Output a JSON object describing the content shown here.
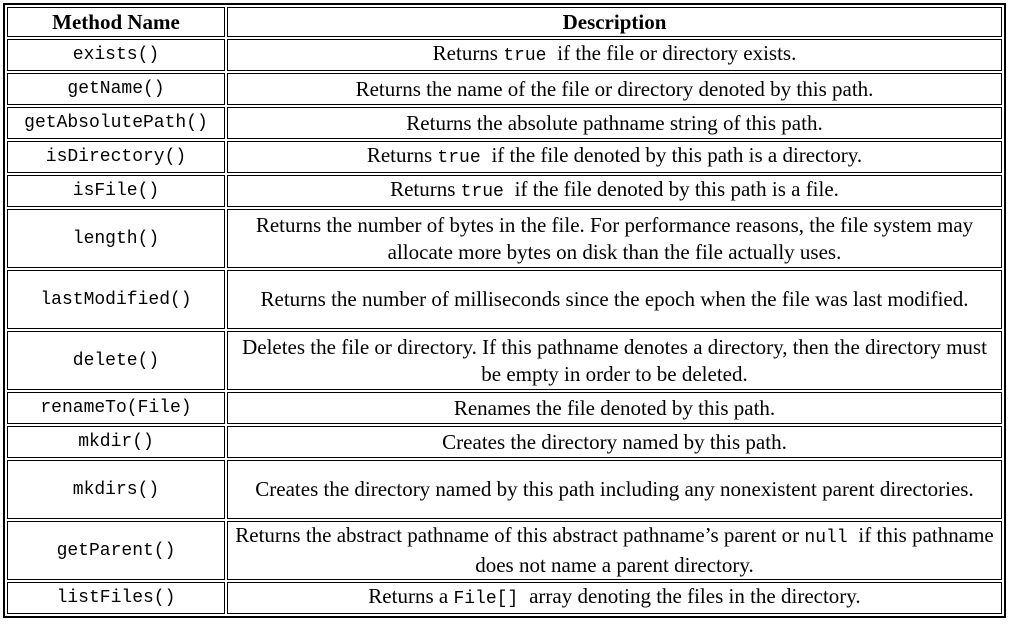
{
  "header": {
    "method_name": "Method Name",
    "description": "Description"
  },
  "rows": [
    {
      "method": "exists()",
      "desc": [
        {
          "t": "Returns "
        },
        {
          "c": "true "
        },
        {
          "t": " if the file or directory exists."
        }
      ]
    },
    {
      "method": "getName()",
      "desc": [
        {
          "t": "Returns the name of the file or directory denoted by this path."
        }
      ]
    },
    {
      "method": "getAbsolutePath()",
      "desc": [
        {
          "t": "Returns the absolute pathname string of this path."
        }
      ]
    },
    {
      "method": "isDirectory()",
      "desc": [
        {
          "t": "Returns "
        },
        {
          "c": "true "
        },
        {
          "t": " if the file denoted by this path is a directory."
        }
      ]
    },
    {
      "method": "isFile()",
      "desc": [
        {
          "t": "Returns "
        },
        {
          "c": "true "
        },
        {
          "t": " if the file denoted by this path is a file."
        }
      ]
    },
    {
      "method": "length()",
      "desc": [
        {
          "t": "Returns the number of bytes in the file. For performance reasons, the file system may allocate more bytes on disk than the file actually uses."
        }
      ]
    },
    {
      "method": "lastModified()",
      "desc": [
        {
          "t": "Returns the number of milliseconds since the epoch when the file was last modified."
        }
      ]
    },
    {
      "method": "delete()",
      "desc": [
        {
          "t": "Deletes the file or directory. If this pathname denotes a directory, then the directory must be empty in order to be deleted."
        }
      ]
    },
    {
      "method": "renameTo(File)",
      "desc": [
        {
          "t": "Renames the file denoted by this path."
        }
      ]
    },
    {
      "method": "mkdir()",
      "desc": [
        {
          "t": "Creates the directory named by this path."
        }
      ]
    },
    {
      "method": "mkdirs()",
      "desc": [
        {
          "t": "Creates the directory named by this path including any nonexistent parent directories."
        }
      ]
    },
    {
      "method": "getParent()",
      "desc": [
        {
          "t": "Returns the abstract pathname of this abstract pathname’s parent or "
        },
        {
          "c": "null "
        },
        {
          "t": " if this pathname does not name a parent directory."
        }
      ]
    },
    {
      "method": "listFiles()",
      "desc": [
        {
          "t": "Returns a "
        },
        {
          "c": "File[] "
        },
        {
          "t": " array denoting the files in the directory."
        }
      ]
    }
  ]
}
